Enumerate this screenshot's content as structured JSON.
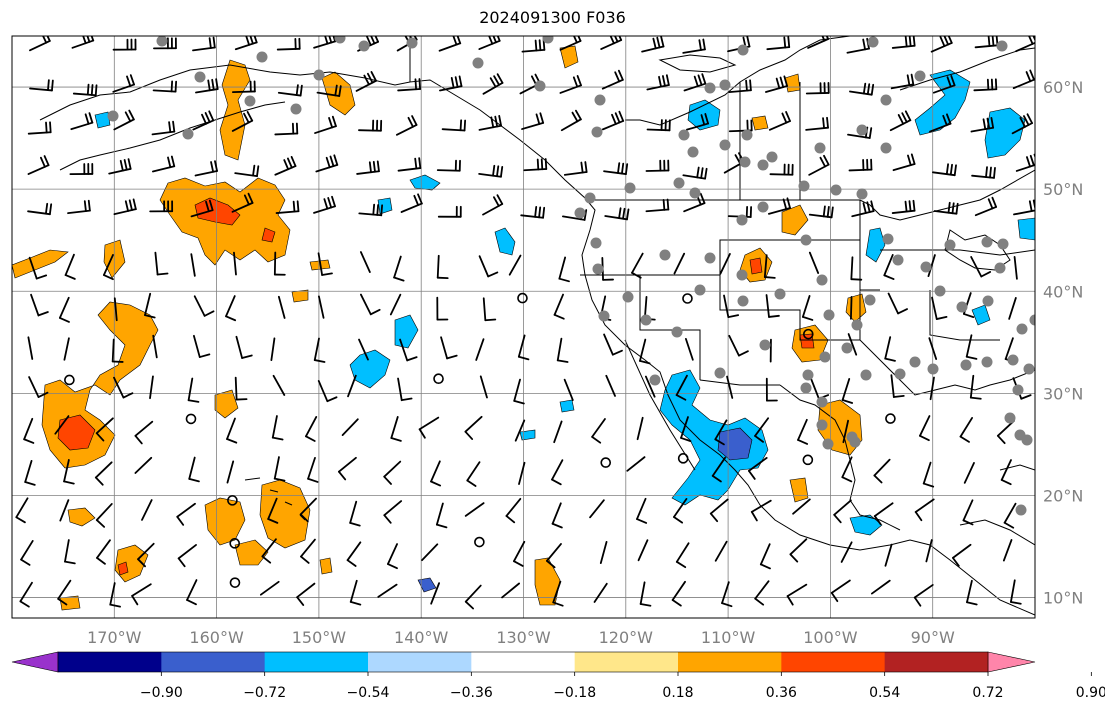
{
  "title": "2024091300 F036",
  "lon_axis": {
    "ticks": [
      -170,
      -160,
      -150,
      -140,
      -130,
      -120,
      -110,
      -100,
      -90
    ],
    "labels": [
      "170°W",
      "160°W",
      "150°W",
      "140°W",
      "130°W",
      "120°W",
      "110°W",
      "100°W",
      "90°W"
    ],
    "range": [
      -180,
      -80
    ]
  },
  "lat_axis": {
    "ticks": [
      10,
      20,
      30,
      40,
      50,
      60
    ],
    "labels": [
      "10°N",
      "20°N",
      "30°N",
      "40°N",
      "50°N",
      "60°N"
    ],
    "range": [
      8,
      65
    ],
    "position": "right"
  },
  "grid": true,
  "colorbar": {
    "orientation": "horizontal",
    "extend": "both",
    "ticks": [
      "−0.90",
      "−0.72",
      "−0.54",
      "−0.36",
      "−0.18",
      "0.18",
      "0.36",
      "0.54",
      "0.72",
      "0.90"
    ],
    "colors": [
      "#9932CC",
      "#00008B",
      "#3A5FCD",
      "#00BFFF",
      "#ADD8FF",
      "#FFFFFF",
      "#FFE78A",
      "#FFA500",
      "#FF4500",
      "#B22222",
      "#FF85AA"
    ]
  },
  "station_color": "#808080",
  "barb_color": "#000000"
}
